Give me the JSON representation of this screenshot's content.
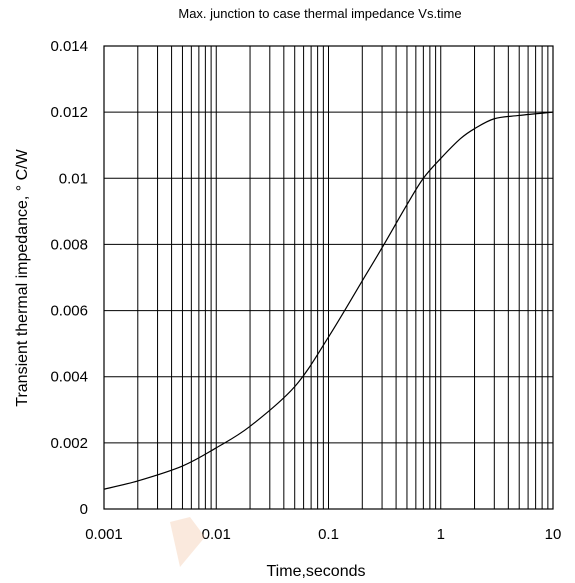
{
  "chart_data": {
    "type": "line",
    "title": "Max. junction to case thermal impedance Vs.time",
    "xlabel": "Time,seconds",
    "ylabel": "Transient thermal impedance, ° C/W",
    "x_scale": "log",
    "xlim": [
      0.001,
      10
    ],
    "ylim": [
      0,
      0.014
    ],
    "x_ticks": [
      0.001,
      0.01,
      0.1,
      1,
      10
    ],
    "x_tick_labels": [
      "0.001",
      "0.01",
      "0.1",
      "1",
      "10"
    ],
    "y_ticks": [
      0,
      0.002,
      0.004,
      0.006,
      0.008,
      0.01,
      0.012,
      0.014
    ],
    "y_tick_labels": [
      "0",
      "0.002",
      "0.004",
      "0.006",
      "0.008",
      "0.01",
      "0.012",
      "0.014"
    ],
    "grid": true,
    "line_color": "#000000",
    "series": [
      {
        "x": [
          0.001,
          0.002,
          0.005,
          0.01,
          0.02,
          0.05,
          0.1,
          0.2,
          0.3,
          0.5,
          0.7,
          1,
          1.5,
          2,
          3,
          5,
          10
        ],
        "y": [
          0.0006,
          0.00085,
          0.0013,
          0.00185,
          0.0025,
          0.0037,
          0.0052,
          0.0069,
          0.0079,
          0.0092,
          0.01,
          0.0106,
          0.0112,
          0.0115,
          0.0118,
          0.0119,
          0.012
        ]
      }
    ]
  }
}
